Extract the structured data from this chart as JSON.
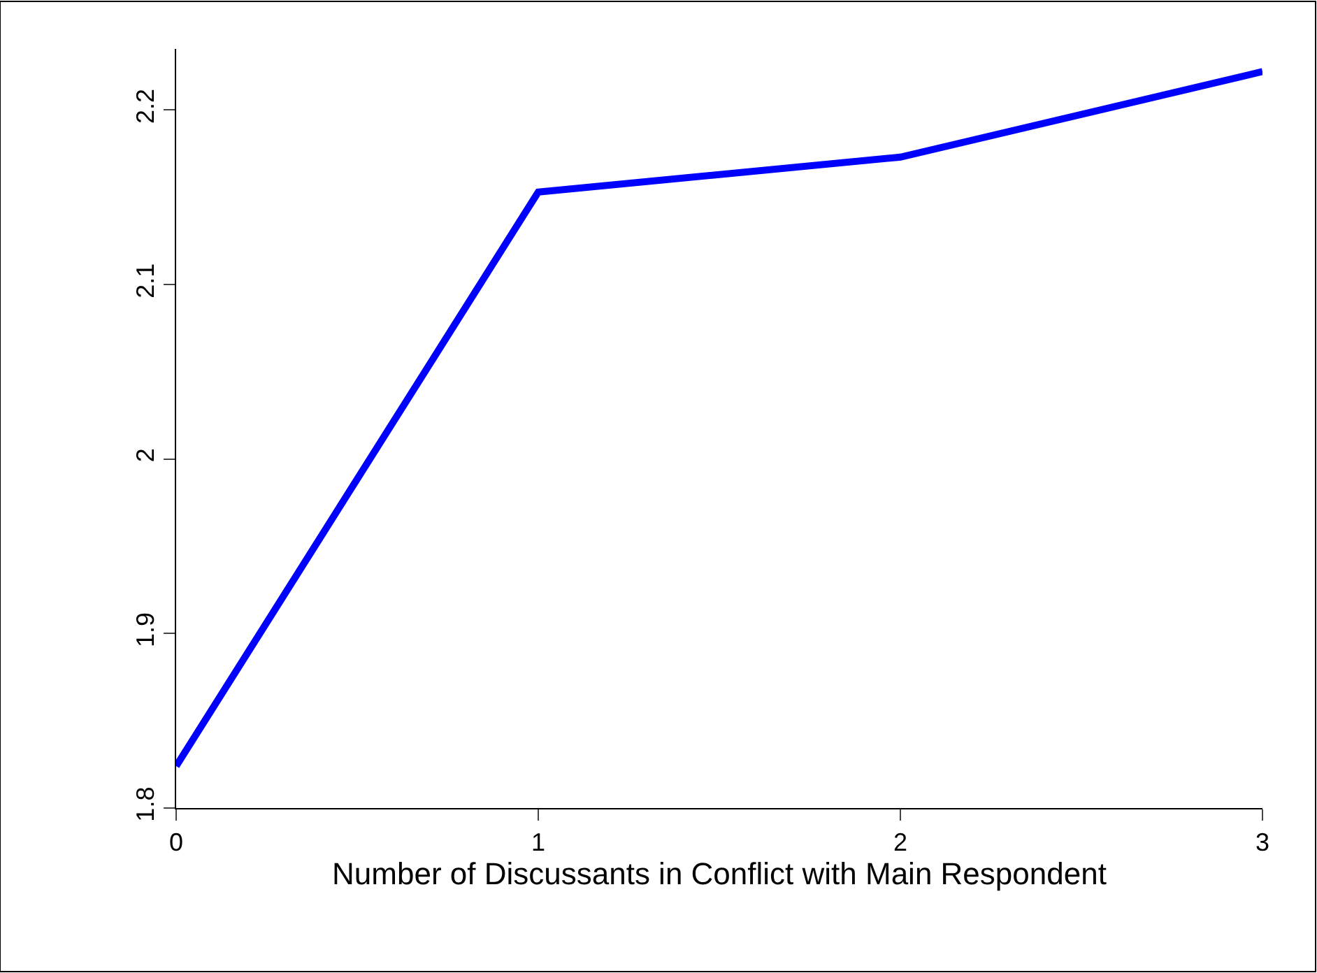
{
  "chart_data": {
    "type": "line",
    "xlabel": "Number of Discussants in Conflict with Main Respondent",
    "x": [
      0,
      1,
      2,
      3
    ],
    "series": [
      {
        "color": "#0000ff",
        "values": [
          1.824,
          2.153,
          2.173,
          2.222
        ]
      }
    ],
    "xlim": [
      0,
      3
    ],
    "xticks": [
      0,
      1,
      2,
      3
    ],
    "ylim": [
      1.8,
      2.235
    ],
    "yticks": [
      1.8,
      1.9,
      2,
      2.1,
      2.2
    ],
    "legend": false,
    "marker": "none",
    "line_style": "solid"
  }
}
